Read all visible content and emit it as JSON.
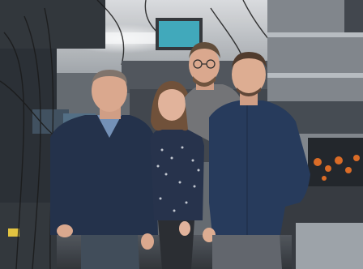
{
  "image": {
    "kind": "photograph",
    "scene": "lab",
    "people_count": 4,
    "palette": {
      "ceiling": "#c9ccd0",
      "wall": "#8e9399",
      "dark_equipment": "#20252b",
      "floor": "#3a3f45",
      "skin": "#d9a58a",
      "navy_sweater": "#1c2a44",
      "shirt_blue": "#1f3356",
      "grey_hoodie": "#6e6f72",
      "jeans": "#3a4654",
      "laser_orange": "#d9661f",
      "monitor_teal": "#3aa6b9"
    }
  }
}
